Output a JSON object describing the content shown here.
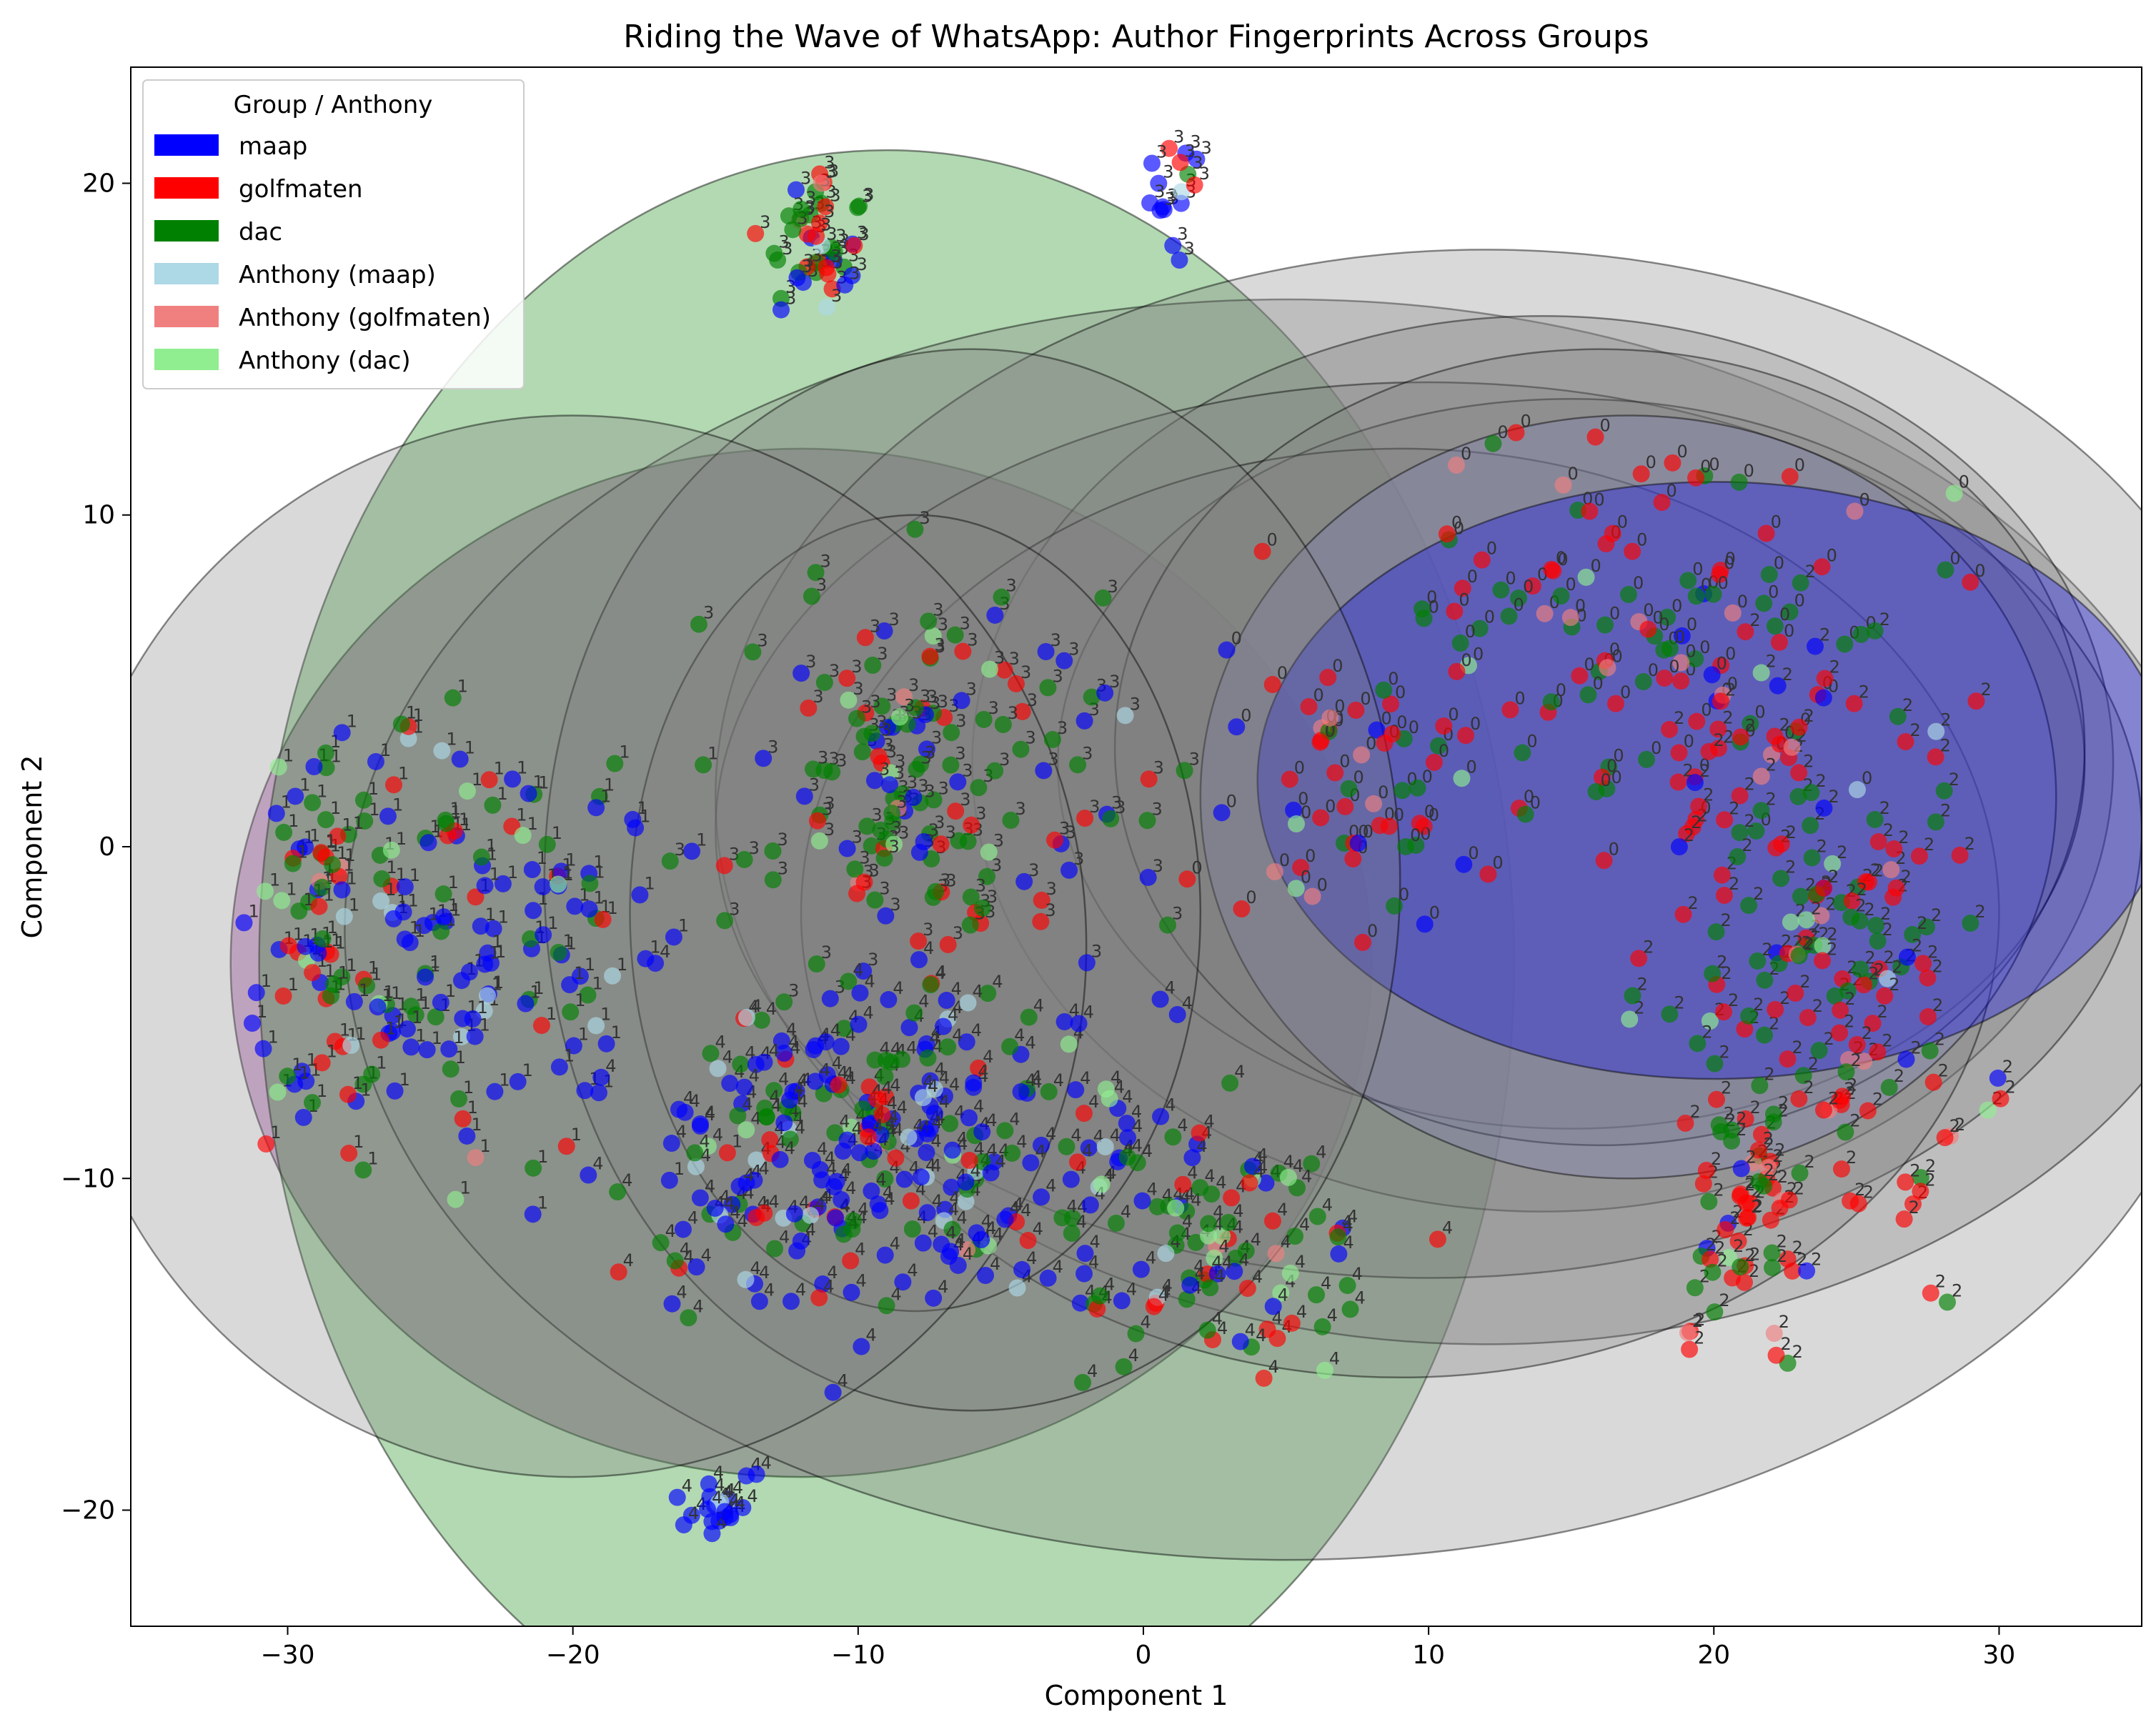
{
  "chart_data": {
    "type": "scatter",
    "title": "Riding the Wave of WhatsApp: Author Fingerprints Across Groups",
    "xlabel": "Component 1",
    "ylabel": "Component 2",
    "xlim": [
      -35.5,
      35
    ],
    "ylim": [
      -23.5,
      23.5
    ],
    "xticks": [
      -30,
      -20,
      -10,
      0,
      10,
      20,
      30
    ],
    "yticks": [
      -20,
      -10,
      0,
      10,
      20
    ],
    "grid": false,
    "legend": {
      "title": "Group / Anthony",
      "placement": "top-left",
      "entries": [
        {
          "label": "maap",
          "color": "#0000ff"
        },
        {
          "label": "golfmaten",
          "color": "#ff0000"
        },
        {
          "label": "dac",
          "color": "#008000"
        },
        {
          "label": "Anthony (maap)",
          "color": "#add8e6"
        },
        {
          "label": "Anthony (golfmaten)",
          "color": "#f08080"
        },
        {
          "label": "Anthony (dac)",
          "color": "#90ee90"
        }
      ]
    },
    "ellipses": [
      {
        "cx": -12,
        "cy": -3.5,
        "rx": 20,
        "ry": 15.5,
        "color": "#800080"
      },
      {
        "cx": -9,
        "cy": -3.5,
        "rx": 22,
        "ry": 24.5,
        "color": "#008000"
      },
      {
        "cx": 5,
        "cy": -2.5,
        "rx": 33,
        "ry": 19,
        "color": "#808080"
      },
      {
        "cx": 12,
        "cy": 1.5,
        "rx": 27,
        "ry": 16.5,
        "color": "#808080"
      },
      {
        "cx": 14,
        "cy": 2.5,
        "rx": 20,
        "ry": 13.5,
        "color": "#808080"
      },
      {
        "cx": 10,
        "cy": 0.5,
        "rx": 25,
        "ry": 13.5,
        "color": "#808080"
      },
      {
        "cx": 15,
        "cy": 2.5,
        "rx": 18,
        "ry": 11,
        "color": "#808080"
      },
      {
        "cx": 9,
        "cy": -2,
        "rx": 21,
        "ry": 14,
        "color": "#808080"
      },
      {
        "cx": 16,
        "cy": 3,
        "rx": 17,
        "ry": 12,
        "color": "#808080"
      },
      {
        "cx": 17,
        "cy": 1.5,
        "rx": 15,
        "ry": 11.5,
        "color": "#8080c0"
      },
      {
        "cx": 20,
        "cy": 2,
        "rx": 16,
        "ry": 9,
        "color": "#0000ff"
      },
      {
        "cx": -6,
        "cy": -1,
        "rx": 15,
        "ry": 16,
        "color": "#808080"
      },
      {
        "cx": -8,
        "cy": -2,
        "rx": 10,
        "ry": 12,
        "color": "#808080"
      },
      {
        "cx": -20,
        "cy": -3,
        "rx": 18,
        "ry": 16,
        "color": "#808080"
      }
    ],
    "clusters": [
      {
        "label": "0",
        "cx": 17,
        "cy": 6,
        "sx": 7,
        "sy": 4.5,
        "n": 120,
        "mix": [
          0.05,
          0.55,
          0.4
        ]
      },
      {
        "label": "0",
        "cx": 7,
        "cy": 1,
        "sx": 3,
        "sy": 3,
        "n": 45,
        "mix": [
          0.15,
          0.6,
          0.25
        ]
      },
      {
        "label": "1",
        "cx": -24,
        "cy": -3,
        "sx": 5,
        "sy": 5,
        "n": 150,
        "mix": [
          0.6,
          0.1,
          0.3
        ]
      },
      {
        "label": "1",
        "cx": -29,
        "cy": -2,
        "sx": 2,
        "sy": 5,
        "n": 60,
        "mix": [
          0.25,
          0.3,
          0.45
        ]
      },
      {
        "label": "2",
        "cx": 24,
        "cy": -3,
        "sx": 4,
        "sy": 6,
        "n": 170,
        "mix": [
          0.05,
          0.6,
          0.35
        ]
      },
      {
        "label": "2",
        "cx": 21,
        "cy": -11,
        "sx": 1.5,
        "sy": 3,
        "n": 50,
        "mix": [
          0.05,
          0.6,
          0.35
        ]
      },
      {
        "label": "3",
        "cx": -7,
        "cy": 2,
        "sx": 5,
        "sy": 4,
        "n": 150,
        "mix": [
          0.2,
          0.2,
          0.6
        ]
      },
      {
        "label": "3",
        "cx": -11.5,
        "cy": 18,
        "sx": 1.2,
        "sy": 1.5,
        "n": 45,
        "mix": [
          0.35,
          0.3,
          0.35
        ]
      },
      {
        "label": "3",
        "cx": 1,
        "cy": 19.5,
        "sx": 1.2,
        "sy": 1.2,
        "n": 16,
        "mix": [
          0.5,
          0.35,
          0.15
        ]
      },
      {
        "label": "4",
        "cx": -9,
        "cy": -9,
        "sx": 6,
        "sy": 4,
        "n": 260,
        "mix": [
          0.6,
          0.15,
          0.25
        ]
      },
      {
        "label": "4",
        "cx": 3,
        "cy": -12,
        "sx": 4,
        "sy": 3,
        "n": 90,
        "mix": [
          0.15,
          0.25,
          0.6
        ]
      },
      {
        "label": "4",
        "cx": -15,
        "cy": -20,
        "sx": 1.0,
        "sy": 0.7,
        "n": 20,
        "mix": [
          0.9,
          0.0,
          0.1
        ]
      }
    ]
  }
}
